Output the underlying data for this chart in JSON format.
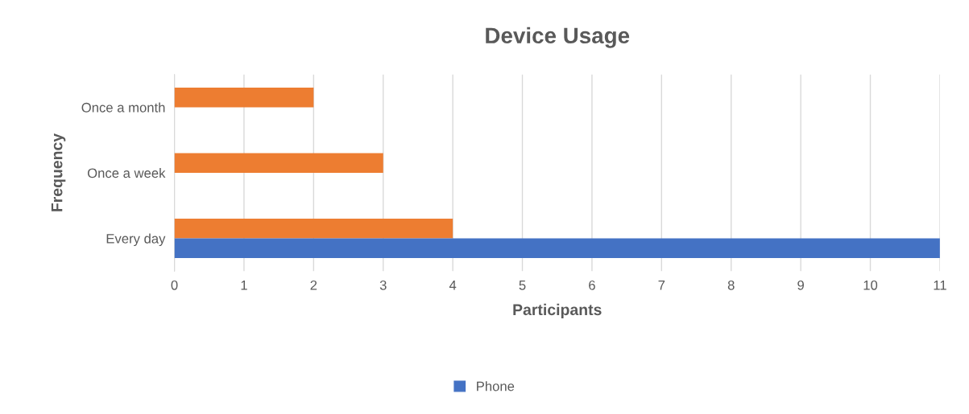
{
  "chart_data": {
    "type": "bar",
    "orientation": "horizontal",
    "title": "Device Usage",
    "xlabel": "Participants",
    "ylabel": "Frequency",
    "categories": [
      "Once a month",
      "Once a week",
      "Every day"
    ],
    "series": [
      {
        "color": "#ed7d31",
        "values": [
          2,
          3,
          4
        ]
      },
      {
        "name": "Phone",
        "color": "#4472c4",
        "values": [
          null,
          null,
          11
        ]
      }
    ],
    "xlim": [
      0,
      11
    ],
    "xticks": [
      0,
      1,
      2,
      3,
      4,
      5,
      6,
      7,
      8,
      9,
      10,
      11
    ],
    "grid": "x",
    "legend": "bottom"
  }
}
